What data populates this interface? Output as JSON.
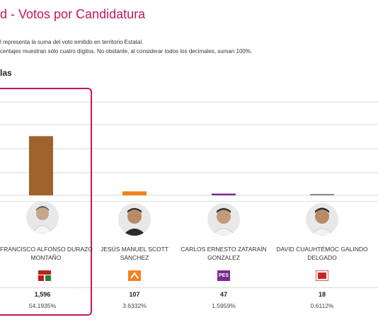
{
  "header": {
    "title": "d - Votos por Candidatura",
    "note1": "l representa la suma del voto emitido en territorio Estatal.",
    "note2": "centajes muestran sólo cuatro dígitos. No obstante, al considerar todos los decimales, suman 100%.",
    "section": "las"
  },
  "colors": {
    "accent": "#c2185b"
  },
  "candidates": [
    {
      "name_line1": "FRANCISCO ALFONSO DURAZO",
      "name_line2": "MONTAÑO",
      "votes": "1,596",
      "pct": "54.1935%",
      "party_icon": "morena-pt-logo-icon",
      "bar_color": "#a0622d"
    },
    {
      "name_line1": "JESÚS MANUEL SCOTT",
      "name_line2": "SÁNCHEZ",
      "votes": "107",
      "pct": "3.6332%",
      "party_icon": "movimiento-ciudadano-logo-icon",
      "bar_color": "#f0821e"
    },
    {
      "name_line1": "CARLOS ERNESTO ZATARAÍN",
      "name_line2": "GONZALEZ",
      "votes": "47",
      "pct": "1.5959%",
      "party_icon": "pes-logo-icon",
      "pes_label": "PES",
      "bar_color": "#7b2d8e"
    },
    {
      "name_line1": "DAVID CUAUHTÉMOC GALINDO",
      "name_line2": "DELGADO",
      "votes": "18",
      "pct": "0.6112%",
      "party_icon": "rsp-logo-icon",
      "bar_color": "#888888"
    }
  ],
  "chart_data": {
    "type": "bar",
    "categories": [
      "FRANCISCO ALFONSO DURAZO MONTAÑO",
      "JESÚS MANUEL SCOTT SÁNCHEZ",
      "CARLOS ERNESTO ZATARAÍN GONZALEZ",
      "DAVID CUAUHTÉMOC GALINDO DELGADO"
    ],
    "values": [
      1596,
      107,
      47,
      18
    ],
    "ylim": [
      0,
      2900
    ],
    "grid": true
  }
}
